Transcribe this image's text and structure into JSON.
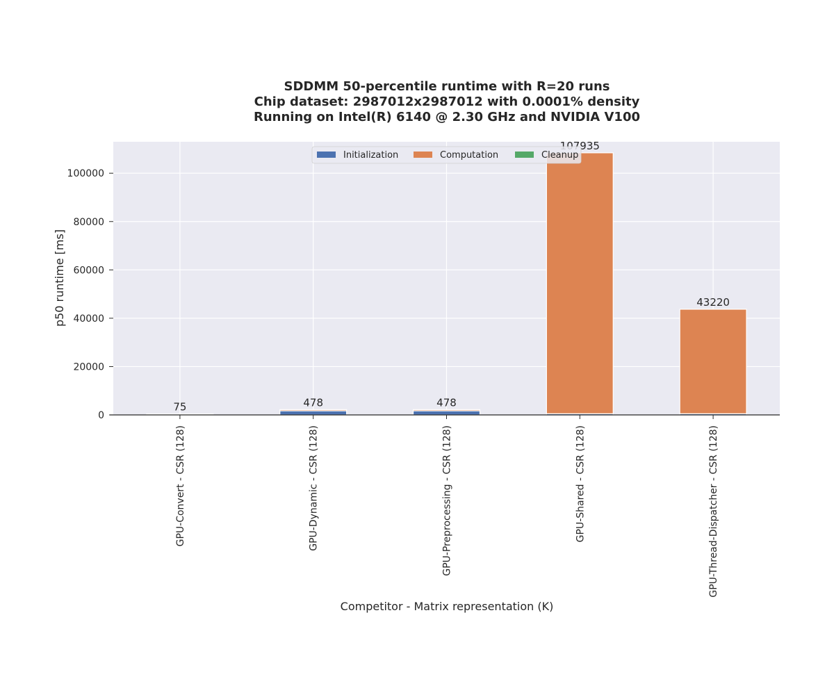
{
  "colors": {
    "background": "#eaeaf2",
    "grid": "#ffffff",
    "Initialization": "#4c72b0",
    "Computation": "#dd8452",
    "Cleanup": "#55a868"
  },
  "chart_data": {
    "type": "bar",
    "stacked": true,
    "title": [
      "SDDMM 50-percentile runtime with R=20 runs",
      "Chip dataset: 2987012x2987012 with 0.0001% density",
      "Running on Intel(R) 6140 @ 2.30 GHz and NVIDIA V100"
    ],
    "xlabel": "Competitor - Matrix representation (K)",
    "ylabel": "p50 runtime [ms]",
    "ylim": [
      0,
      113000
    ],
    "yticks": [
      0,
      20000,
      40000,
      60000,
      80000,
      100000
    ],
    "grid": true,
    "legend_position": "top-center",
    "categories": [
      "GPU-Convert - CSR (128)",
      "GPU-Dynamic - CSR (128)",
      "GPU-Preprocessing - CSR (128)",
      "GPU-Shared - CSR (128)",
      "GPU-Thread-Dispatcher - CSR (128)"
    ],
    "series": [
      {
        "name": "Initialization",
        "values": [
          300,
          1700,
          1700,
          500,
          500
        ]
      },
      {
        "name": "Computation",
        "values": [
          75,
          478,
          478,
          107935,
          43220
        ]
      },
      {
        "name": "Cleanup",
        "values": [
          0,
          0,
          0,
          0,
          0
        ]
      }
    ],
    "bar_labels": [
      "75",
      "478",
      "478",
      "107935",
      "43220"
    ]
  }
}
